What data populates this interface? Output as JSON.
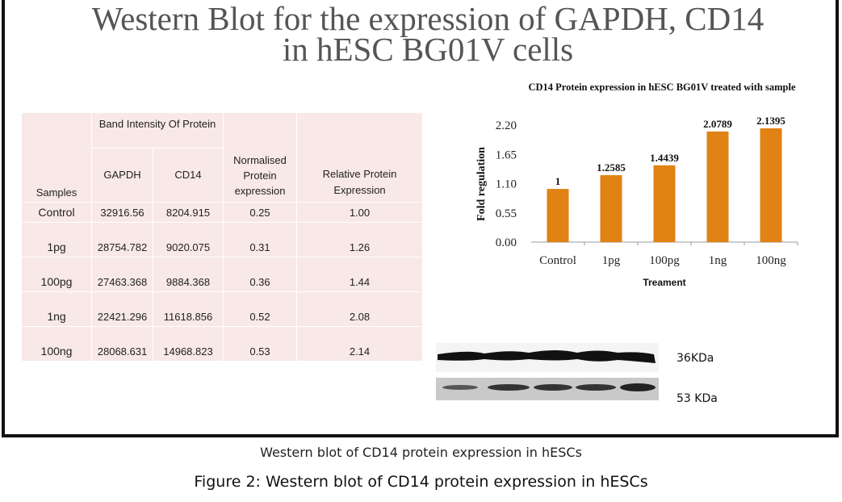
{
  "figure_title_line1": "Western Blot for the expression of   GAPDH, CD14",
  "figure_title_line2": "in hESC BG01V cells",
  "table": {
    "header_group": "Band Intensity Of Protein",
    "headers": [
      "Samples",
      "GAPDH",
      "CD14",
      "Normalised Protein expression",
      "Relative Protein Expression"
    ],
    "rows": [
      [
        "Control",
        "32916.56",
        "8204.915",
        "0.25",
        "1.00"
      ],
      [
        "1pg",
        "28754.782",
        "9020.075",
        "0.31",
        "1.26"
      ],
      [
        "100pg",
        "27463.368",
        "9884.368",
        "0.36",
        "1.44"
      ],
      [
        "1ng",
        "22421.296",
        "11618.856",
        "0.52",
        "2.08"
      ],
      [
        "100ng",
        "28068.631",
        "14968.823",
        "0.53",
        "2.14"
      ]
    ]
  },
  "chart_data": {
    "type": "bar",
    "title": "CD14 Protein  expression in  hESC BG01V  treated with sample",
    "categories": [
      "Control",
      "1pg",
      "100pg",
      "1ng",
      "100ng"
    ],
    "values": [
      1,
      1.2585,
      1.4439,
      2.0789,
      2.1395
    ],
    "data_labels": [
      "1",
      "1.2585",
      "1.4439",
      "2.0789",
      "2.1395"
    ],
    "xlabel": "Treament",
    "ylabel": "Fold  regulation",
    "ylim": [
      0,
      2.2
    ],
    "yticks": [
      "0.00",
      "0.55",
      "1.10",
      "1.65",
      "2.20"
    ],
    "bar_color": "#e08214",
    "grid": false
  },
  "blot": {
    "band1_label": "36KDa",
    "band2_label": "53 KDa"
  },
  "caption_small": "Western blot of CD14 protein expression in hESCs",
  "caption_main": "Figure 2: Western blot of CD14 protein expression in hESCs"
}
